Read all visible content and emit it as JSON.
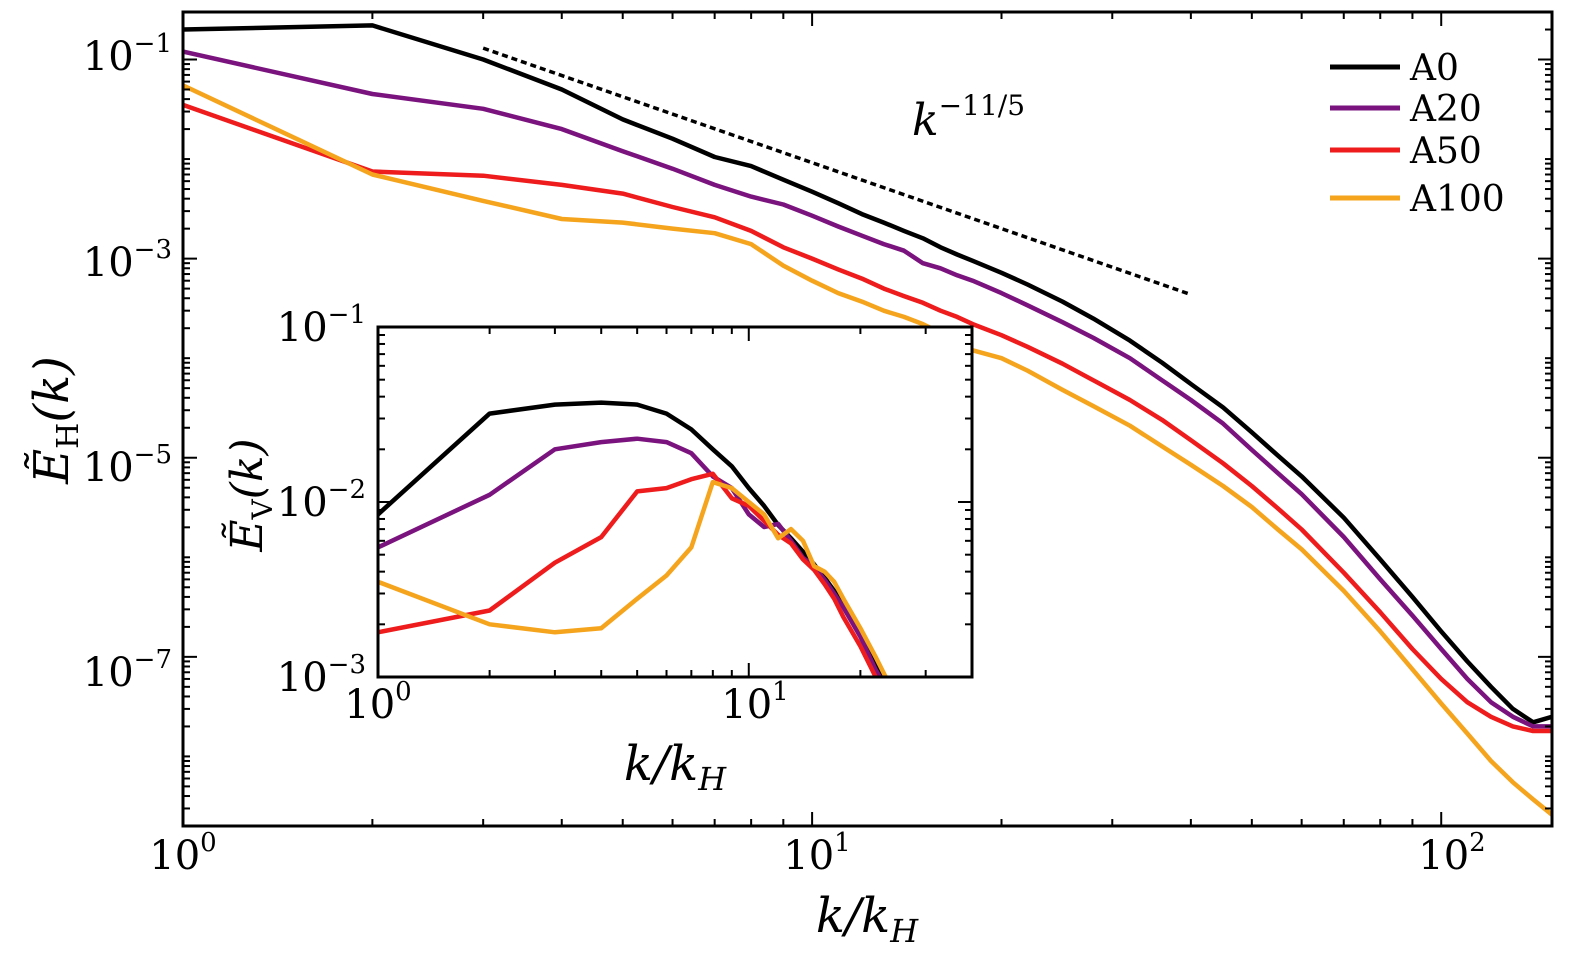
{
  "chart_data": [
    {
      "type": "line",
      "name": "main",
      "xscale": "log",
      "yscale": "log",
      "xlim": [
        1,
        150
      ],
      "ylim": [
        2e-09,
        0.3
      ],
      "x": [
        1,
        2,
        3,
        4,
        5,
        6,
        7,
        8,
        9,
        10,
        11,
        12,
        13,
        14,
        15,
        16,
        17,
        18,
        20,
        22,
        25,
        28,
        32,
        36,
        40,
        45,
        50,
        55,
        60,
        70,
        80,
        90,
        100,
        110,
        120,
        130,
        140,
        150
      ],
      "series": [
        {
          "name": "A0",
          "color": "#000000",
          "values": [
            0.2,
            0.22,
            0.1,
            0.05,
            0.025,
            0.016,
            0.0105,
            0.0085,
            0.0062,
            0.0047,
            0.0036,
            0.0028,
            0.0023,
            0.0019,
            0.0016,
            0.0013,
            0.0011,
            0.00095,
            0.00072,
            0.00055,
            0.00037,
            0.00025,
            0.00015,
            9e-05,
            5.5e-05,
            3.2e-05,
            1.8e-05,
            1.05e-05,
            6.5e-06,
            2.5e-06,
            9.5e-07,
            4e-07,
            1.8e-07,
            9e-08,
            5e-08,
            3e-08,
            2.2e-08,
            2.5e-08
          ]
        },
        {
          "name": "A20",
          "color": "#7a137e",
          "values": [
            0.12,
            0.045,
            0.032,
            0.02,
            0.012,
            0.008,
            0.0055,
            0.0042,
            0.0035,
            0.0027,
            0.0021,
            0.0017,
            0.0014,
            0.0012,
            0.0009,
            0.0008,
            0.00068,
            0.0006,
            0.00045,
            0.00034,
            0.00023,
            0.00016,
            0.0001,
            6e-05,
            3.8e-05,
            2.2e-05,
            1.2e-05,
            7e-06,
            4.3e-06,
            1.6e-06,
            6e-07,
            2.6e-07,
            1.2e-07,
            6e-08,
            3.5e-08,
            2.5e-08,
            2e-08,
            2e-08
          ]
        },
        {
          "name": "A50",
          "color": "#ee1c1c",
          "values": [
            0.035,
            0.0075,
            0.0068,
            0.0055,
            0.0045,
            0.0033,
            0.0026,
            0.0019,
            0.0013,
            0.001,
            0.00078,
            0.00063,
            0.0005,
            0.00042,
            0.00036,
            0.0003,
            0.00026,
            0.00022,
            0.00017,
            0.00013,
            8.8e-05,
            6e-05,
            3.8e-05,
            2.4e-05,
            1.5e-05,
            8.8e-06,
            5.2e-06,
            3.1e-06,
            1.9e-06,
            7e-07,
            2.8e-07,
            1.2e-07,
            6e-08,
            3.5e-08,
            2.5e-08,
            2e-08,
            1.8e-08,
            1.8e-08
          ]
        },
        {
          "name": "A100",
          "color": "#f5a41d",
          "values": [
            0.055,
            0.007,
            0.0038,
            0.0025,
            0.0023,
            0.002,
            0.0018,
            0.0014,
            0.00085,
            0.0006,
            0.00045,
            0.00037,
            0.0003,
            0.00026,
            0.00022,
            0.00018,
            0.00014,
            0.00012,
            0.0001,
            7.5e-05,
            4.8e-05,
            3.3e-05,
            2.1e-05,
            1.3e-05,
            8.5e-06,
            5.2e-06,
            3.2e-06,
            1.9e-06,
            1.2e-06,
            4.6e-07,
            1.8e-07,
            7.5e-08,
            3.4e-08,
            1.7e-08,
            9e-09,
            5.5e-09,
            3.7e-09,
            2.6e-09
          ]
        }
      ],
      "reference_line": {
        "label_base": "k",
        "label_exponent": "−11/5",
        "exponent": -2.2,
        "x_start": 3,
        "x_end": 40,
        "y_at_start": 0.13,
        "style": "dotted"
      },
      "title": "",
      "xlabel_base": "k/k",
      "xlabel_sub": "H",
      "ylabel_base": "Ẽ",
      "ylabel_sub": "H",
      "ylabel_arg": "(k)",
      "x_ticks": [
        {
          "value": 1,
          "base": "10",
          "exp": "0"
        },
        {
          "value": 10,
          "base": "10",
          "exp": "1"
        },
        {
          "value": 100,
          "base": "10",
          "exp": "2"
        }
      ],
      "y_ticks": [
        {
          "value": 0.1,
          "base": "10",
          "exp": "−1"
        },
        {
          "value": 0.001,
          "base": "10",
          "exp": "−3"
        },
        {
          "value": 1e-05,
          "base": "10",
          "exp": "−5"
        },
        {
          "value": 1e-07,
          "base": "10",
          "exp": "−7"
        }
      ],
      "legend": {
        "position": "top-right",
        "entries": [
          "A0",
          "A20",
          "A50",
          "A100"
        ]
      }
    },
    {
      "type": "line",
      "name": "inset",
      "xscale": "log",
      "yscale": "log",
      "xlim": [
        1,
        40
      ],
      "ylim": [
        0.001,
        0.1
      ],
      "x": [
        1,
        2,
        3,
        4,
        5,
        6,
        7,
        8,
        9,
        10,
        11,
        12,
        13,
        14,
        15,
        16,
        17,
        18,
        20,
        22,
        24
      ],
      "series": [
        {
          "name": "A0",
          "color": "#000000",
          "values": [
            0.0085,
            0.032,
            0.036,
            0.037,
            0.036,
            0.032,
            0.026,
            0.02,
            0.016,
            0.012,
            0.0095,
            0.0074,
            0.0062,
            0.0052,
            0.0044,
            0.0037,
            0.0031,
            0.0026,
            0.0018,
            0.0012,
            0.0009
          ]
        },
        {
          "name": "A20",
          "color": "#7a137e",
          "values": [
            0.0055,
            0.011,
            0.02,
            0.022,
            0.023,
            0.022,
            0.019,
            0.014,
            0.012,
            0.0085,
            0.0072,
            0.0075,
            0.006,
            0.0048,
            0.0043,
            0.0036,
            0.003,
            0.0025,
            0.0017,
            0.0011,
            0.0008
          ]
        },
        {
          "name": "A50",
          "color": "#ee1c1c",
          "values": [
            0.0018,
            0.0024,
            0.0045,
            0.0063,
            0.0115,
            0.012,
            0.0135,
            0.0145,
            0.0105,
            0.0095,
            0.0078,
            0.0065,
            0.0058,
            0.0047,
            0.0041,
            0.0034,
            0.0028,
            0.0022,
            0.0015,
            0.001,
            0.0007
          ]
        },
        {
          "name": "A100",
          "color": "#f5a41d",
          "values": [
            0.0035,
            0.002,
            0.0018,
            0.0019,
            0.0028,
            0.0038,
            0.0055,
            0.013,
            0.012,
            0.01,
            0.0085,
            0.0062,
            0.007,
            0.006,
            0.0043,
            0.004,
            0.0035,
            0.0028,
            0.0019,
            0.0013,
            0.0009
          ]
        }
      ],
      "xlabel_base": "k/k",
      "xlabel_sub": "H",
      "ylabel_base": "Ẽ",
      "ylabel_sub": "V",
      "ylabel_arg": "(k)",
      "x_ticks": [
        {
          "value": 1,
          "base": "10",
          "exp": "0"
        },
        {
          "value": 10,
          "base": "10",
          "exp": "1"
        }
      ],
      "y_ticks": [
        {
          "value": 0.1,
          "base": "10",
          "exp": "−1"
        },
        {
          "value": 0.01,
          "base": "10",
          "exp": "−2"
        },
        {
          "value": 0.001,
          "base": "10",
          "exp": "−3"
        }
      ]
    }
  ]
}
